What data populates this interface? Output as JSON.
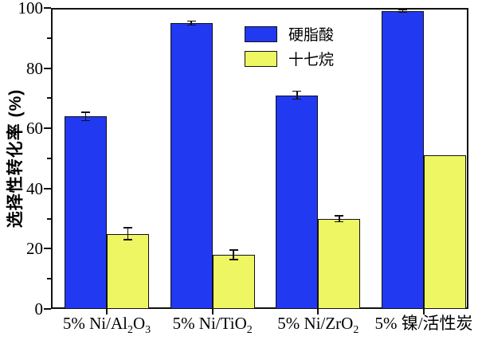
{
  "chart_data": {
    "type": "bar",
    "title": "",
    "xlabel": "",
    "ylabel": "选择性转化率 (%)",
    "ylim": [
      0,
      100
    ],
    "yticks_major": [
      0,
      20,
      40,
      60,
      80,
      100
    ],
    "yticks_minor": [
      10,
      30,
      50,
      70,
      90
    ],
    "grid": "off",
    "legend_position": "upper-center-inside",
    "categories": [
      "5% Ni/Al2O3",
      "5% Ni/TiO2",
      "5% Ni/ZrO2",
      "5% 镍/活性炭"
    ],
    "categories_rich": [
      [
        {
          "t": "5% Ni/Al"
        },
        {
          "t": "2",
          "sub": true
        },
        {
          "t": "O"
        },
        {
          "t": "3",
          "sub": true
        }
      ],
      [
        {
          "t": "5% Ni/TiO"
        },
        {
          "t": "2",
          "sub": true
        }
      ],
      [
        {
          "t": "5% Ni/ZrO"
        },
        {
          "t": "2",
          "sub": true
        }
      ],
      [
        {
          "t": "5% 镍/活性炭"
        }
      ]
    ],
    "series": [
      {
        "name": "硬脂酸",
        "color": "#2239f2",
        "values": [
          64,
          95,
          71,
          99
        ],
        "errors": [
          1.4,
          0.7,
          1.3,
          0.4
        ]
      },
      {
        "name": "十七烷",
        "color": "#eef763",
        "values": [
          25,
          18,
          30,
          51
        ],
        "errors": [
          2.0,
          1.6,
          1.0,
          0
        ]
      }
    ],
    "colors": {
      "axis": "#111111",
      "background": "#ffffff",
      "bar_border": "#111111"
    }
  }
}
